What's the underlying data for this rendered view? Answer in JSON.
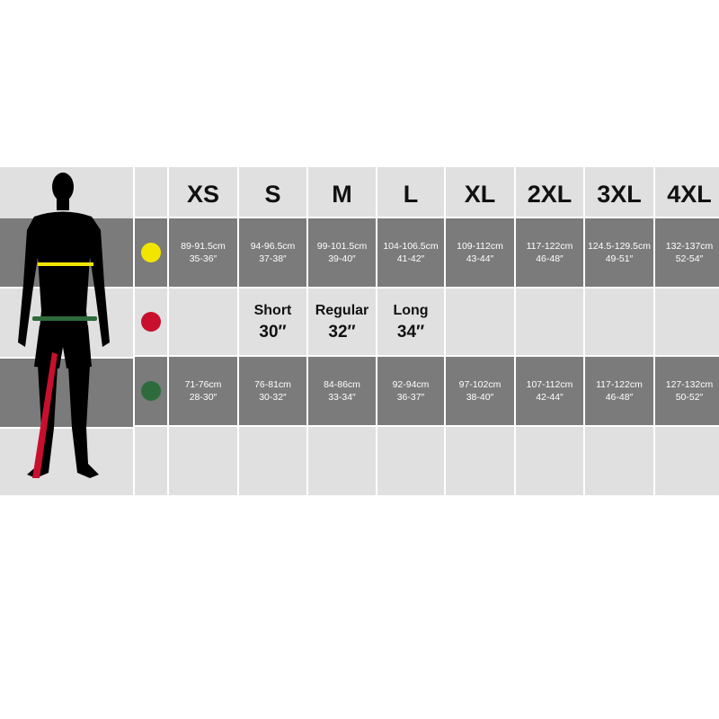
{
  "sizes": [
    "XS",
    "S",
    "M",
    "L",
    "XL",
    "2XL",
    "3XL",
    "4XL"
  ],
  "colors": {
    "chest": "#f2e600",
    "inseam": "#c8102e",
    "waist": "#2e6b3c"
  },
  "chest": [
    [
      "89-91.5cm",
      "35-36″"
    ],
    [
      "94-96.5cm",
      "37-38″"
    ],
    [
      "99-101.5cm",
      "39-40″"
    ],
    [
      "104-106.5cm",
      "41-42″"
    ],
    [
      "109-112cm",
      "43-44″"
    ],
    [
      "117-122cm",
      "46-48″"
    ],
    [
      "124.5-129.5cm",
      "49-51″"
    ],
    [
      "132-137cm",
      "52-54″"
    ]
  ],
  "inseam": [
    {
      "size": "S",
      "label": "Short",
      "value": "30″"
    },
    {
      "size": "M",
      "label": "Regular",
      "value": "32″"
    },
    {
      "size": "L",
      "label": "Long",
      "value": "34″"
    }
  ],
  "waist": [
    [
      "71-76cm",
      "28-30″"
    ],
    [
      "76-81cm",
      "30-32″"
    ],
    [
      "84-86cm",
      "33-34″"
    ],
    [
      "92-94cm",
      "36-37″"
    ],
    [
      "97-102cm",
      "38-40″"
    ],
    [
      "107-112cm",
      "42-44″"
    ],
    [
      "117-122cm",
      "46-48″"
    ],
    [
      "127-132cm",
      "50-52″"
    ]
  ]
}
